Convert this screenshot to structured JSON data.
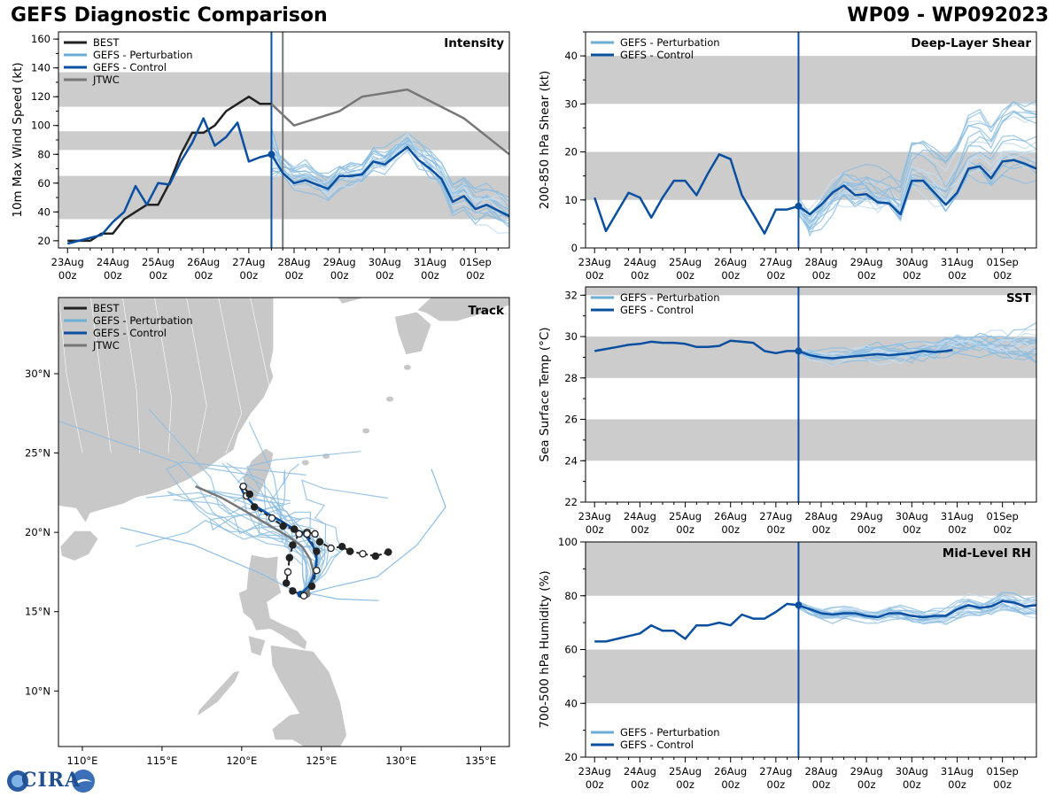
{
  "header": {
    "title": "GEFS Diagnostic Comparison",
    "storm": "WP09 - WP092023"
  },
  "logo": {
    "text": "CIRA"
  },
  "colors": {
    "best": "#222222",
    "perturbation": "#8cbde0",
    "perturbation_legend": "#6aaed6",
    "control": "#0b4fa0",
    "jtwc": "#777777",
    "band": "#cccccc",
    "land": "#c8c8c8"
  },
  "time_axis": {
    "labels": [
      "23Aug\n00z",
      "24Aug\n00z",
      "25Aug\n00z",
      "26Aug\n00z",
      "27Aug\n00z",
      "28Aug\n00z",
      "29Aug\n00z",
      "30Aug\n00z",
      "31Aug\n00z",
      "01Sep\n00z"
    ],
    "init_day": 4.5,
    "range": [
      -0.2,
      9.75
    ]
  },
  "chart_data": [
    {
      "id": "intensity",
      "type": "line",
      "title": "Intensity",
      "ylabel": "10m Max Wind Speed (kt)",
      "ylim": [
        15,
        165
      ],
      "yticks": [
        20,
        40,
        60,
        80,
        100,
        120,
        140,
        160
      ],
      "bands": [
        [
          35,
          65
        ],
        [
          83,
          96
        ],
        [
          113,
          137
        ]
      ],
      "legend": [
        "BEST",
        "GEFS - Perturbation",
        "GEFS - Control",
        "JTWC"
      ],
      "jtwc_vline": 4.75,
      "series": [
        {
          "name": "BEST",
          "x": [
            0,
            0.25,
            0.5,
            0.75,
            1,
            1.25,
            1.5,
            1.75,
            2,
            2.25,
            2.5,
            2.75,
            3,
            3.25,
            3.5,
            3.75,
            4,
            4.25,
            4.5
          ],
          "y": [
            20,
            20,
            20,
            25,
            25,
            35,
            40,
            45,
            45,
            60,
            80,
            95,
            95,
            100,
            110,
            115,
            120,
            115,
            115
          ]
        },
        {
          "name": "GEFS - Control",
          "x": [
            0,
            0.25,
            0.5,
            0.75,
            1,
            1.25,
            1.5,
            1.75,
            2,
            2.25,
            2.5,
            2.75,
            3,
            3.25,
            3.5,
            3.75,
            4,
            4.25,
            4.5,
            4.75,
            5,
            5.25,
            5.5,
            5.75,
            6,
            6.25,
            6.5,
            6.75,
            7,
            7.25,
            7.5,
            7.75,
            8,
            8.25,
            8.5,
            8.75,
            9,
            9.25,
            9.5,
            9.75
          ],
          "y": [
            18,
            20,
            22,
            24,
            33,
            40,
            58,
            45,
            60,
            59,
            75,
            88,
            105,
            86,
            92,
            102,
            75,
            78,
            80,
            67,
            60,
            62,
            59,
            56,
            65,
            65,
            66,
            75,
            73,
            79,
            85,
            76,
            70,
            63,
            47,
            51,
            42,
            45,
            41,
            37
          ]
        },
        {
          "name": "JTWC",
          "x": [
            4.5,
            5.0,
            6.0,
            6.5,
            7.5,
            8.75,
            9.75
          ],
          "y": [
            115,
            100,
            110,
            120,
            125,
            105,
            80
          ]
        }
      ]
    },
    {
      "id": "shear",
      "type": "line",
      "title": "Deep-Layer Shear",
      "ylabel": "200-850 hPa Shear (kt)",
      "ylim": [
        0,
        45
      ],
      "yticks": [
        0,
        10,
        20,
        30,
        40
      ],
      "bands": [
        [
          10,
          20
        ],
        [
          30,
          40
        ]
      ],
      "legend": [
        "GEFS - Perturbation",
        "GEFS - Control"
      ],
      "series": [
        {
          "name": "GEFS - Control",
          "x": [
            0,
            0.25,
            0.5,
            0.75,
            1,
            1.25,
            1.5,
            1.75,
            2,
            2.25,
            2.5,
            2.75,
            3,
            3.25,
            3.5,
            3.75,
            4,
            4.25,
            4.5,
            4.75,
            5,
            5.25,
            5.5,
            5.75,
            6,
            6.25,
            6.5,
            6.75,
            7,
            7.25,
            7.5,
            7.75,
            8,
            8.25,
            8.5,
            8.75,
            9,
            9.25,
            9.5,
            9.75
          ],
          "y": [
            10.5,
            3.5,
            7.5,
            11.5,
            10.5,
            6.3,
            10.5,
            14,
            14,
            11,
            15.5,
            19.5,
            18.5,
            11,
            7,
            3,
            8,
            8,
            8.7,
            7,
            9,
            11.5,
            13,
            11,
            11.2,
            9.5,
            9.3,
            7,
            14,
            14,
            11.5,
            9,
            11.5,
            16.5,
            17,
            14.5,
            18,
            18.3,
            17.5,
            16.5
          ]
        }
      ]
    },
    {
      "id": "sst",
      "type": "line",
      "title": "SST",
      "ylabel": "Sea Surface Temp (°C)",
      "ylim": [
        22,
        32.4
      ],
      "yticks": [
        22,
        24,
        26,
        28,
        30,
        32
      ],
      "bands": [
        [
          24,
          26
        ],
        [
          28,
          30
        ],
        [
          32,
          32.4
        ]
      ],
      "legend": [
        "GEFS - Perturbation",
        "GEFS - Control"
      ],
      "series": [
        {
          "name": "GEFS - Control",
          "x": [
            0,
            0.25,
            0.5,
            0.75,
            1,
            1.25,
            1.5,
            1.75,
            2,
            2.25,
            2.5,
            2.75,
            3,
            3.25,
            3.5,
            3.75,
            4,
            4.25,
            4.5,
            4.75,
            5,
            5.25,
            5.5,
            5.75,
            6,
            6.25,
            6.5,
            6.75,
            7,
            7.25,
            7.5,
            7.75,
            7.9
          ],
          "y": [
            29.3,
            29.4,
            29.5,
            29.6,
            29.65,
            29.75,
            29.7,
            29.7,
            29.65,
            29.5,
            29.5,
            29.55,
            29.8,
            29.75,
            29.7,
            29.3,
            29.2,
            29.3,
            29.3,
            29.1,
            29.0,
            28.95,
            29.0,
            29.05,
            29.1,
            29.15,
            29.1,
            29.15,
            29.2,
            29.3,
            29.25,
            29.3,
            29.35
          ]
        }
      ]
    },
    {
      "id": "rh",
      "type": "line",
      "title": "Mid-Level RH",
      "ylabel": "700-500 hPa Humidity (%)",
      "ylim": [
        20,
        100
      ],
      "yticks": [
        20,
        40,
        60,
        80,
        100
      ],
      "bands": [
        [
          40,
          60
        ],
        [
          80,
          100
        ]
      ],
      "legend": [
        "GEFS - Perturbation",
        "GEFS - Control"
      ],
      "series": [
        {
          "name": "GEFS - Control",
          "x": [
            0,
            0.25,
            0.5,
            0.75,
            1,
            1.25,
            1.5,
            1.75,
            2,
            2.25,
            2.5,
            2.75,
            3,
            3.25,
            3.5,
            3.75,
            4,
            4.25,
            4.5,
            4.75,
            5,
            5.25,
            5.5,
            5.75,
            6,
            6.25,
            6.5,
            6.75,
            7,
            7.25,
            7.5,
            7.75,
            8,
            8.25,
            8.5,
            8.75,
            9,
            9.25,
            9.5,
            9.75
          ],
          "y": [
            63,
            63,
            64,
            65,
            66,
            69,
            67,
            67,
            64,
            69,
            69,
            70,
            69,
            73,
            71.5,
            71.5,
            74,
            77,
            76.5,
            75,
            73.5,
            73,
            73.5,
            73.5,
            72.5,
            72,
            73.5,
            73.5,
            72.5,
            72,
            72.5,
            72.5,
            75,
            76.5,
            75.5,
            76,
            78,
            77.5,
            76,
            76.5
          ]
        }
      ]
    },
    {
      "id": "track",
      "type": "scatter",
      "title": "Track",
      "legend": [
        "BEST",
        "GEFS - Perturbation",
        "GEFS - Control",
        "JTWC"
      ],
      "xlim": [
        108.5,
        136.8
      ],
      "ylim": [
        6.5,
        34.8
      ],
      "xticks": [
        110,
        115,
        120,
        125,
        130,
        135
      ],
      "yticks": [
        10,
        15,
        20,
        25,
        30
      ],
      "xtick_labels": [
        "110°E",
        "115°E",
        "120°E",
        "125°E",
        "130°E",
        "135°E"
      ],
      "ytick_labels": [
        "10°N",
        "15°N",
        "20°N",
        "25°N",
        "30°N"
      ],
      "best_track": [
        {
          "lon": 129.2,
          "lat": 18.75,
          "filled": true
        },
        {
          "lon": 128.4,
          "lat": 18.5,
          "filled": true
        },
        {
          "lon": 127.6,
          "lat": 18.65,
          "filled": false
        },
        {
          "lon": 126.8,
          "lat": 18.8,
          "filled": true
        },
        {
          "lon": 126.3,
          "lat": 19.1,
          "filled": true
        },
        {
          "lon": 125.6,
          "lat": 19.0,
          "filled": false
        },
        {
          "lon": 124.9,
          "lat": 19.4,
          "filled": true
        },
        {
          "lon": 124.6,
          "lat": 19.9,
          "filled": false
        },
        {
          "lon": 124.1,
          "lat": 20.0,
          "filled": false
        },
        {
          "lon": 123.6,
          "lat": 19.9,
          "filled": false
        },
        {
          "lon": 123.2,
          "lat": 19.2,
          "filled": true
        },
        {
          "lon": 123.0,
          "lat": 18.4,
          "filled": true
        },
        {
          "lon": 122.9,
          "lat": 17.5,
          "filled": false
        },
        {
          "lon": 122.8,
          "lat": 16.8,
          "filled": true
        },
        {
          "lon": 123.2,
          "lat": 16.3,
          "filled": true
        },
        {
          "lon": 123.9,
          "lat": 16.0,
          "filled": false
        },
        {
          "lon": 124.4,
          "lat": 16.6,
          "filled": true
        },
        {
          "lon": 124.7,
          "lat": 17.6,
          "filled": false
        },
        {
          "lon": 124.7,
          "lat": 18.8,
          "filled": true
        },
        {
          "lon": 124.1,
          "lat": 19.9,
          "filled": false
        },
        {
          "lon": 123.3,
          "lat": 20.2,
          "filled": true
        },
        {
          "lon": 122.6,
          "lat": 20.4,
          "filled": true
        },
        {
          "lon": 121.9,
          "lat": 20.9,
          "filled": false
        },
        {
          "lon": 120.8,
          "lat": 21.6,
          "filled": true
        },
        {
          "lon": 120.3,
          "lat": 22.3,
          "filled": false
        },
        {
          "lon": 120.5,
          "lat": 22.4,
          "filled": true
        },
        {
          "lon": 120.1,
          "lat": 22.9,
          "filled": false
        }
      ],
      "control_track": [
        [
          123.7,
          16.1
        ],
        [
          124.2,
          16.6
        ],
        [
          124.6,
          17.4
        ],
        [
          124.7,
          18.3
        ],
        [
          124.5,
          19.1
        ],
        [
          124.0,
          19.8
        ],
        [
          123.3,
          20.2
        ],
        [
          122.5,
          20.7
        ],
        [
          121.6,
          21.2
        ],
        [
          120.8,
          21.7
        ],
        [
          120.2,
          22.3
        ],
        [
          119.9,
          22.9
        ]
      ],
      "jtwc_track": [
        [
          124.1,
          16.1
        ],
        [
          124.4,
          16.7
        ],
        [
          124.5,
          17.5
        ],
        [
          124.3,
          18.3
        ],
        [
          123.8,
          19.1
        ],
        [
          123.0,
          19.7
        ],
        [
          121.8,
          20.4
        ],
        [
          120.3,
          21.3
        ],
        [
          118.7,
          22.2
        ],
        [
          117.1,
          22.9
        ]
      ]
    }
  ]
}
